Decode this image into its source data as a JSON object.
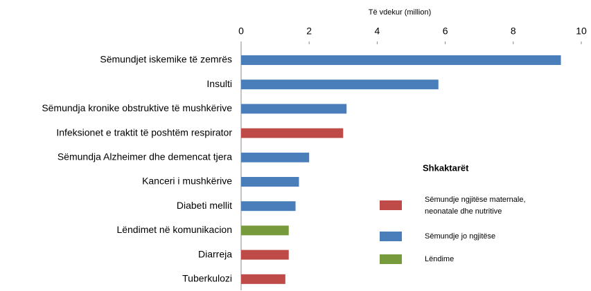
{
  "chart_data": {
    "type": "bar",
    "orientation": "horizontal",
    "x_label": "Të vdekur (million)",
    "categories": [
      "Sëmundjet iskemike të zemrës",
      "Insulti",
      "Sëmundja kronike obstruktive të mushkërive",
      "Infeksionet e traktit të poshtëm respirator",
      "Sëmundja Alzheimer dhe demencat tjera",
      "Kanceri i mushkërive",
      "Diabeti mellit",
      "Lëndimet në komunikacion",
      "Diarreja",
      "Tuberkulozi"
    ],
    "series": [
      {
        "name": "Sëmundje ngjitëse maternale, neonatale dhe nutritive",
        "color": "#be4b48",
        "values": [
          null,
          null,
          null,
          3.0,
          null,
          null,
          null,
          null,
          1.4,
          1.3
        ]
      },
      {
        "name": "Sëmundje jo ngjitëse",
        "color": "#4a7ebb",
        "values": [
          9.4,
          5.8,
          3.1,
          null,
          2.0,
          1.7,
          1.6,
          null,
          null,
          null
        ]
      },
      {
        "name": "Lëndime",
        "color": "#779a3c",
        "values": [
          null,
          null,
          null,
          null,
          null,
          null,
          null,
          1.4,
          null,
          null
        ]
      }
    ],
    "legend_title": "Shkaktarët",
    "xlim": [
      0,
      10
    ],
    "xticks": [
      0,
      2,
      4,
      6,
      8,
      10
    ]
  }
}
